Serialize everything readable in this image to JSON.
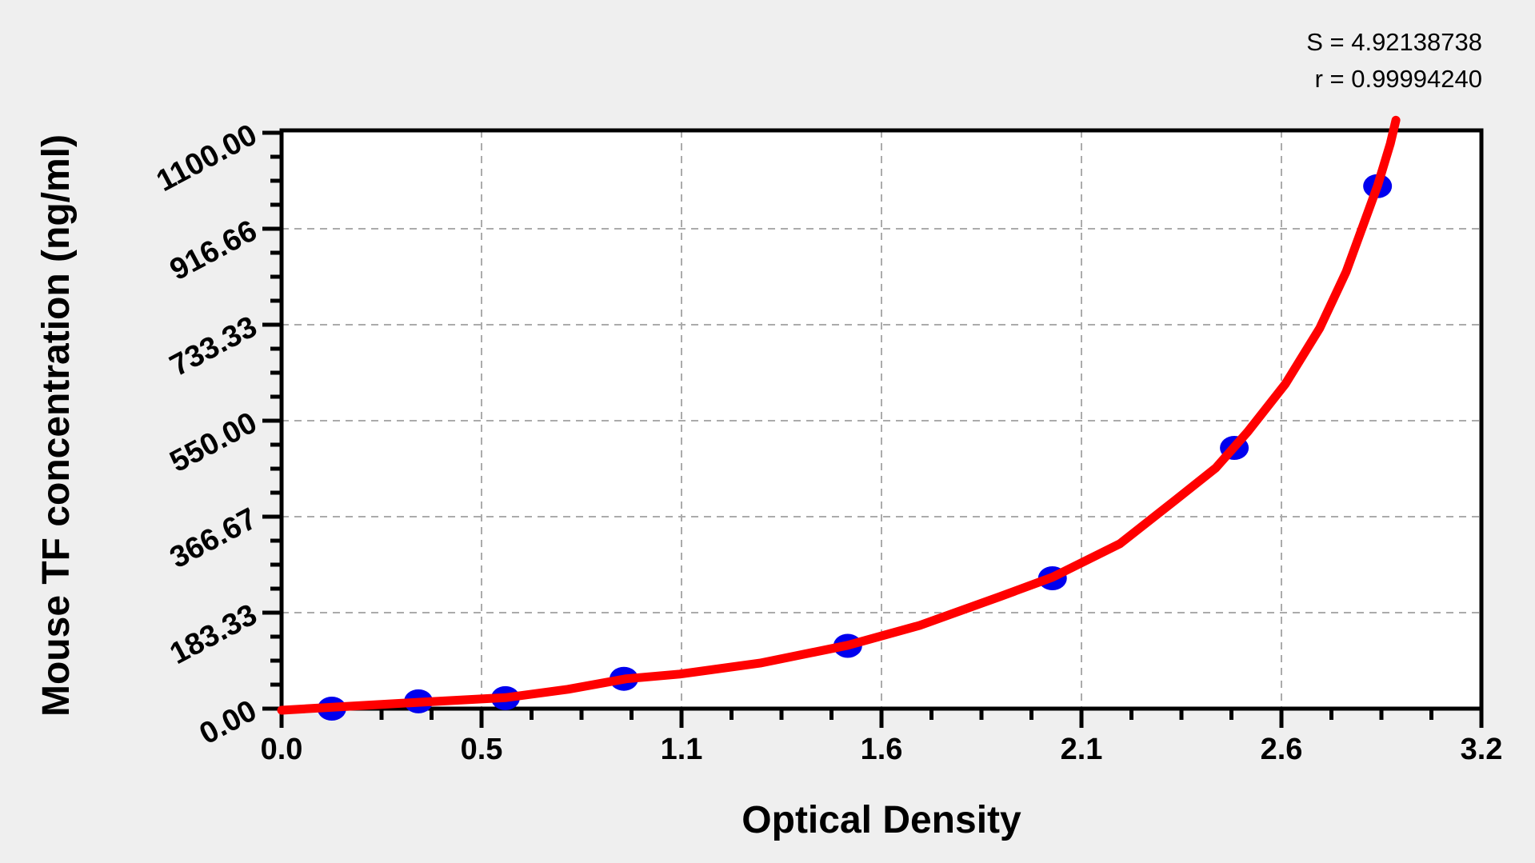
{
  "stats": {
    "line1": "S = 4.92138738",
    "line2": "r = 0.99994240"
  },
  "chart_data": {
    "type": "scatter",
    "title": "",
    "xlabel": "Optical Density",
    "ylabel": "Mouse TF concentration (ng/ml)",
    "xlim": [
      0,
      3.2
    ],
    "ylim": [
      0,
      1100
    ],
    "x_tick_labels": [
      "0.0",
      "0.5",
      "1.1",
      "1.6",
      "2.1",
      "2.6",
      "3.2"
    ],
    "y_tick_labels": [
      "0.00",
      "183.33",
      "366.67",
      "550.00",
      "733.33",
      "916.66",
      "1100.00"
    ],
    "x_major_divisions": 6,
    "y_major_divisions": 6,
    "minor_intervals_per_major": 4,
    "grid": "dashed gray at major ticks",
    "legend_position": "none",
    "points": [
      {
        "od": 0.134,
        "concentration": 0
      },
      {
        "od": 0.365,
        "concentration": 14
      },
      {
        "od": 0.597,
        "concentration": 20
      },
      {
        "od": 0.913,
        "concentration": 57
      },
      {
        "od": 1.51,
        "concentration": 120
      },
      {
        "od": 2.056,
        "concentration": 249
      },
      {
        "od": 2.541,
        "concentration": 498
      },
      {
        "od": 2.923,
        "concentration": 998
      }
    ],
    "fit_curve": [
      [
        0.0,
        -3
      ],
      [
        0.145,
        3
      ],
      [
        0.365,
        12
      ],
      [
        0.597,
        21
      ],
      [
        0.764,
        37
      ],
      [
        0.919,
        57
      ],
      [
        1.062,
        66
      ],
      [
        1.276,
        87
      ],
      [
        1.51,
        121
      ],
      [
        1.702,
        159
      ],
      [
        1.916,
        214
      ],
      [
        2.056,
        251
      ],
      [
        2.236,
        315
      ],
      [
        2.385,
        399
      ],
      [
        2.492,
        460
      ],
      [
        2.577,
        529
      ],
      [
        2.677,
        620
      ],
      [
        2.769,
        727
      ],
      [
        2.839,
        834
      ],
      [
        2.886,
        926
      ],
      [
        2.923,
        999
      ],
      [
        2.957,
        1079
      ],
      [
        2.972,
        1124
      ]
    ],
    "colors": {
      "curve": "#ff0000",
      "marker": "#0000ee",
      "grid": "#ababab",
      "axis": "#000000",
      "plot_background": "#ffffff",
      "canvas_background": "#efefef",
      "text": "#000000"
    }
  }
}
